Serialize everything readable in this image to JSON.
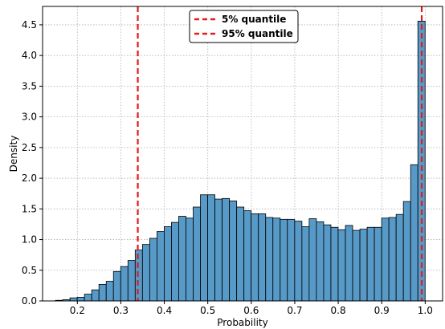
{
  "chart_data": {
    "type": "histogram",
    "xlabel": "Probability",
    "ylabel": "Density",
    "xlim": [
      0.12,
      1.04
    ],
    "ylim": [
      0,
      4.8
    ],
    "grid": true,
    "legend_position": "top-center",
    "bar_color": "#5799c7",
    "bar_edge_color": "#000000",
    "line_color": "#e41a1c",
    "xticks": [
      "0.2",
      "0.3",
      "0.4",
      "0.5",
      "0.6",
      "0.7",
      "0.8",
      "0.9",
      "1.0"
    ],
    "yticks": [
      "0.0",
      "0.5",
      "1.0",
      "1.5",
      "2.0",
      "2.5",
      "3.0",
      "3.5",
      "4.0",
      "4.5"
    ],
    "bin_width": 0.01667,
    "bins_start": 0.133,
    "values": [
      0.0,
      0.01,
      0.02,
      0.05,
      0.06,
      0.11,
      0.18,
      0.27,
      0.32,
      0.48,
      0.56,
      0.66,
      0.83,
      0.92,
      1.02,
      1.13,
      1.21,
      1.28,
      1.38,
      1.35,
      1.53,
      1.73,
      1.73,
      1.66,
      1.67,
      1.63,
      1.53,
      1.47,
      1.42,
      1.42,
      1.36,
      1.35,
      1.33,
      1.33,
      1.3,
      1.21,
      1.34,
      1.29,
      1.24,
      1.2,
      1.16,
      1.23,
      1.15,
      1.17,
      1.2,
      1.2,
      1.35,
      1.36,
      1.41,
      1.62,
      2.22,
      4.56
    ],
    "quantiles": [
      {
        "name": "5% quantile",
        "value": 0.339
      },
      {
        "name": "95% quantile",
        "value": 0.992
      }
    ]
  }
}
